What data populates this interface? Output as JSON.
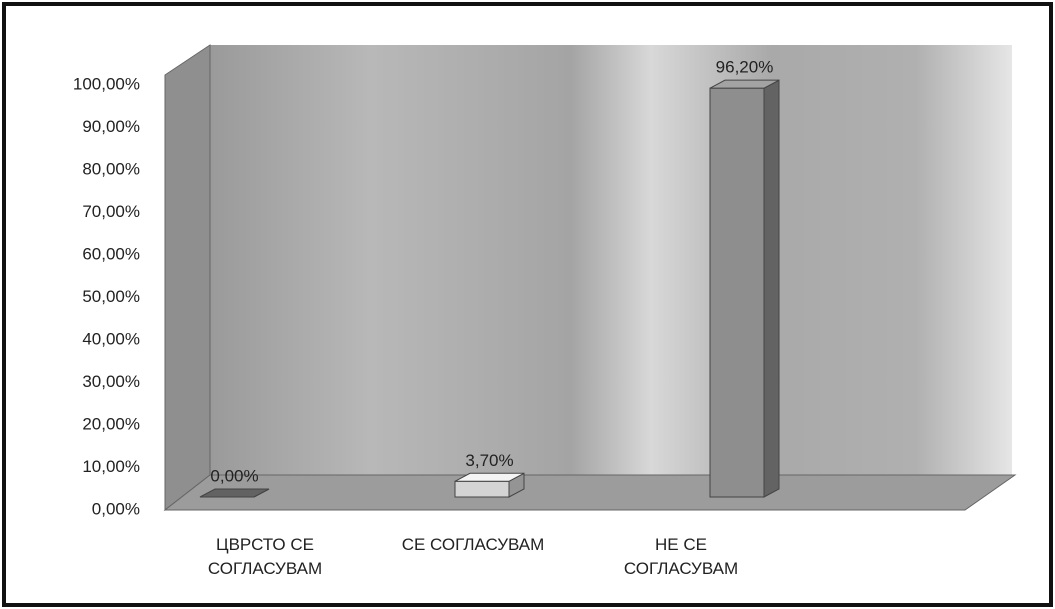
{
  "chart_data": {
    "type": "bar3d",
    "categories": [
      "ЦВРСТО СЕ СОГЛАСУВАМ",
      "СЕ СОГЛАСУВАМ",
      "НЕ СЕ СОГЛАСУВАМ"
    ],
    "values": [
      0,
      3.7,
      96.2
    ],
    "value_labels": [
      "0,00%",
      "3,70%",
      "96,20%"
    ],
    "colors": [
      "#555555",
      "#d4d4d4",
      "#8e8e8e"
    ],
    "ylim": [
      0,
      100
    ],
    "yticks": [
      {
        "value": 0,
        "label": "0,00%"
      },
      {
        "value": 10,
        "label": "10,00%"
      },
      {
        "value": 20,
        "label": "20,00%"
      },
      {
        "value": 30,
        "label": "30,00%"
      },
      {
        "value": 40,
        "label": "40,00%"
      },
      {
        "value": 50,
        "label": "50,00%"
      },
      {
        "value": 60,
        "label": "60,00%"
      },
      {
        "value": 70,
        "label": "70,00%"
      },
      {
        "value": 80,
        "label": "80,00%"
      },
      {
        "value": 90,
        "label": "90,00%"
      },
      {
        "value": 100,
        "label": "100,00%"
      }
    ],
    "grid": false
  }
}
